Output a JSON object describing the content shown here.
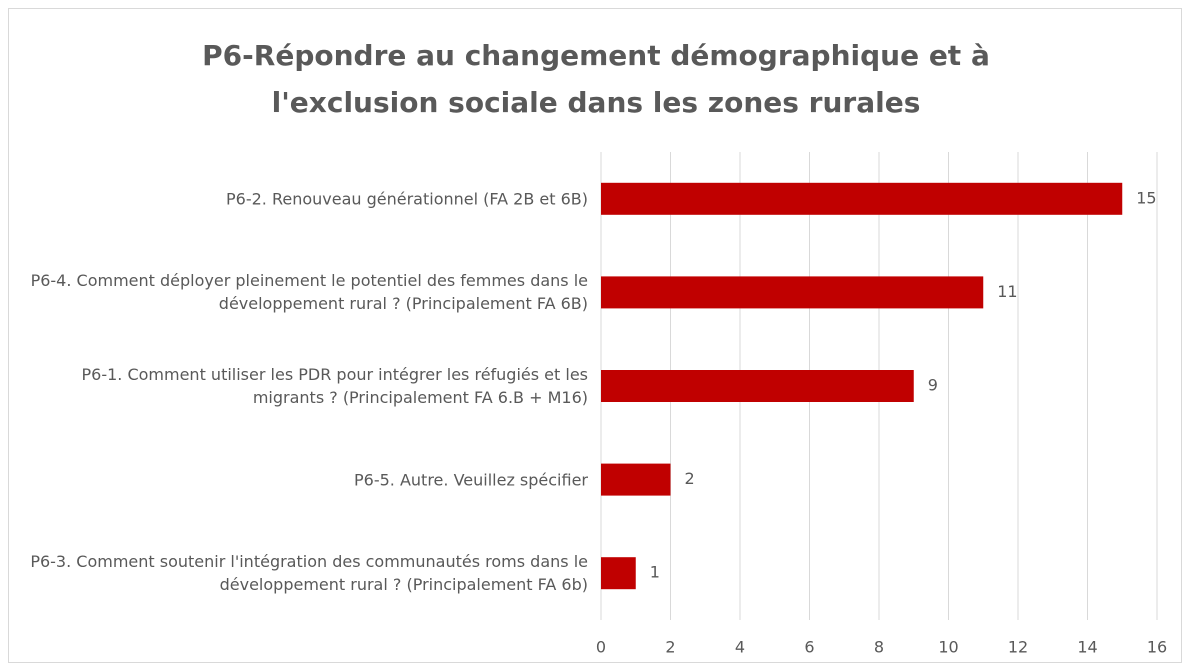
{
  "chart_data": {
    "type": "bar",
    "orientation": "horizontal",
    "title": "P6-Répondre au changement démographique et à l'exclusion sociale dans les zones rurales",
    "categories": [
      "P6-2. Renouveau générationnel (FA 2B et 6B)",
      "P6-4. Comment déployer pleinement le potentiel des femmes dans le développement rural ? (Principalement FA 6B)",
      "P6-1. Comment utiliser les PDR pour intégrer les réfugiés et les migrants ? (Principalement FA 6.B + M16)",
      "P6-5. Autre. Veuillez spécifier",
      "P6-3. Comment soutenir l'intégration des communautés roms dans le développement rural ? (Principalement FA 6b)"
    ],
    "values": [
      15,
      11,
      9,
      2,
      1
    ],
    "color": "#c00000",
    "xlim": [
      0,
      16
    ],
    "xticks": [
      0,
      2,
      4,
      6,
      8,
      10,
      12,
      14,
      16
    ],
    "grid": true
  }
}
